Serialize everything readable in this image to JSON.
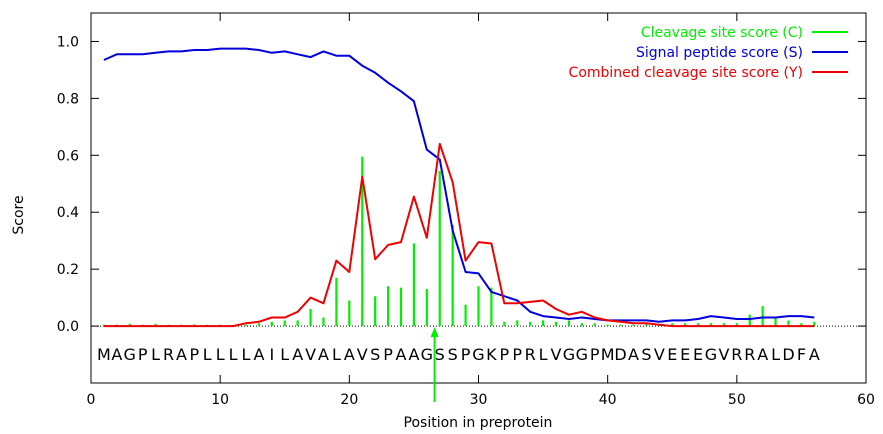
{
  "chart_data": {
    "type": "line",
    "xlabel": "Position in preprotein",
    "ylabel": "Score",
    "xlim": [
      0,
      60
    ],
    "ylim": [
      -0.2,
      1.1
    ],
    "xticks": [
      0,
      10,
      20,
      30,
      40,
      50,
      60
    ],
    "yticks": [
      0.0,
      0.2,
      0.4,
      0.6,
      0.8,
      1.0
    ],
    "tick_labels_x": [
      "0",
      "10",
      "20",
      "30",
      "40",
      "50",
      "60"
    ],
    "tick_labels_y": [
      "0.0",
      "0.2",
      "0.4",
      "0.6",
      "0.8",
      "1.0"
    ],
    "grid": false,
    "legend_position": "top-right",
    "sequence": "MAGPLRAPLLLLAILAVALAVSPAAGSSPGKPPRLVGGPMDASVEEEGVRRALDFA",
    "cleavage_site": 27,
    "x": [
      1,
      2,
      3,
      4,
      5,
      6,
      7,
      8,
      9,
      10,
      11,
      12,
      13,
      14,
      15,
      16,
      17,
      18,
      19,
      20,
      21,
      22,
      23,
      24,
      25,
      26,
      27,
      28,
      29,
      30,
      31,
      32,
      33,
      34,
      35,
      36,
      37,
      38,
      39,
      40,
      41,
      42,
      43,
      44,
      45,
      46,
      47,
      48,
      49,
      50,
      51,
      52,
      53,
      54,
      55,
      56
    ],
    "series": [
      {
        "name": "Cleavage site score (C)",
        "color": "#00ee00",
        "style": "impulses",
        "values": [
          0.005,
          0.005,
          0.008,
          0.005,
          0.008,
          0.005,
          0.005,
          0.006,
          0.005,
          0.005,
          0.004,
          0.005,
          0.01,
          0.015,
          0.02,
          0.02,
          0.06,
          0.03,
          0.17,
          0.09,
          0.595,
          0.105,
          0.14,
          0.135,
          0.29,
          0.13,
          0.545,
          0.355,
          0.075,
          0.14,
          0.135,
          0.015,
          0.02,
          0.015,
          0.02,
          0.015,
          0.02,
          0.01,
          0.01,
          0.005,
          0.005,
          0.005,
          0.01,
          0.005,
          0.01,
          0.01,
          0.01,
          0.01,
          0.01,
          0.01,
          0.04,
          0.07,
          0.03,
          0.02,
          0.01,
          0.015
        ]
      },
      {
        "name": "Signal peptide score (S)",
        "color": "#0000dd",
        "style": "line",
        "values": [
          0.935,
          0.955,
          0.955,
          0.955,
          0.96,
          0.965,
          0.965,
          0.97,
          0.97,
          0.975,
          0.975,
          0.975,
          0.97,
          0.96,
          0.965,
          0.955,
          0.945,
          0.965,
          0.95,
          0.95,
          0.915,
          0.89,
          0.855,
          0.825,
          0.79,
          0.62,
          0.585,
          0.335,
          0.19,
          0.185,
          0.12,
          0.105,
          0.09,
          0.05,
          0.035,
          0.03,
          0.025,
          0.03,
          0.025,
          0.02,
          0.02,
          0.02,
          0.02,
          0.015,
          0.02,
          0.02,
          0.025,
          0.035,
          0.03,
          0.025,
          0.025,
          0.03,
          0.03,
          0.035,
          0.035,
          0.03
        ]
      },
      {
        "name": "Combined cleavage site score (Y)",
        "color": "#ee0000",
        "style": "line",
        "values": [
          0.0,
          0.0,
          0.0,
          0.0,
          0.0,
          0.0,
          0.0,
          0.0,
          0.0,
          0.0,
          0.0,
          0.01,
          0.015,
          0.03,
          0.03,
          0.05,
          0.1,
          0.08,
          0.23,
          0.19,
          0.525,
          0.235,
          0.285,
          0.295,
          0.455,
          0.31,
          0.64,
          0.505,
          0.23,
          0.295,
          0.29,
          0.08,
          0.08,
          0.085,
          0.09,
          0.06,
          0.04,
          0.05,
          0.03,
          0.02,
          0.015,
          0.01,
          0.01,
          0.005,
          0.0,
          0.0,
          0.0,
          0.0,
          0.0,
          0.0,
          0.0,
          0.0,
          0.0,
          0.0,
          0.0,
          0.0
        ]
      }
    ]
  }
}
